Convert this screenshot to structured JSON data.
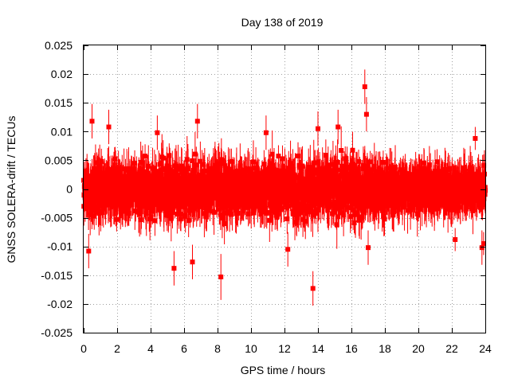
{
  "chart_data": {
    "type": "scatter",
    "title": "Day 138 of 2019",
    "xlabel": "GPS time / hours",
    "ylabel": "GNSS SOLERA-drift / TECUs",
    "xlim": [
      0,
      24
    ],
    "ylim": [
      -0.025,
      0.025
    ],
    "x_ticks": [
      0,
      2,
      4,
      6,
      8,
      10,
      12,
      14,
      16,
      18,
      20,
      22,
      24
    ],
    "y_ticks": [
      -0.025,
      -0.02,
      -0.015,
      -0.01,
      -0.005,
      0,
      0.005,
      0.01,
      0.015,
      0.02,
      0.025
    ],
    "y_tick_labels": [
      "-0.025",
      "-0.02",
      "-0.015",
      "-0.01",
      "-0.005",
      "0",
      "0.005",
      "0.01",
      "0.015",
      "0.02",
      "0.025"
    ],
    "grid": true,
    "series": [
      {
        "color": "#ff0000",
        "marker": "square",
        "error_bars": true,
        "sampling_interval_hours": 0.01,
        "typical_spread": 0.005,
        "typical_error": 0.003,
        "notable_points": [
          {
            "x": 16.8,
            "y": 0.0178,
            "err": 0.003
          },
          {
            "x": 16.9,
            "y": 0.013,
            "err": 0.003
          },
          {
            "x": 13.7,
            "y": -0.0173,
            "err": 0.003
          },
          {
            "x": 8.2,
            "y": -0.0153,
            "err": 0.004
          },
          {
            "x": 5.4,
            "y": -0.0138,
            "err": 0.003
          },
          {
            "x": 6.5,
            "y": -0.0127,
            "err": 0.003
          },
          {
            "x": 0.5,
            "y": 0.0118,
            "err": 0.003
          },
          {
            "x": 0.3,
            "y": -0.0108,
            "err": 0.003
          },
          {
            "x": 12.2,
            "y": -0.0105,
            "err": 0.003
          },
          {
            "x": 23.8,
            "y": -0.0102,
            "err": 0.003
          },
          {
            "x": 23.4,
            "y": 0.0088,
            "err": 0.002
          },
          {
            "x": 10.9,
            "y": 0.0098,
            "err": 0.003
          },
          {
            "x": 14.0,
            "y": 0.0105,
            "err": 0.003
          },
          {
            "x": 15.2,
            "y": 0.0108,
            "err": 0.003
          },
          {
            "x": 4.4,
            "y": 0.0098,
            "err": 0.003
          },
          {
            "x": 6.8,
            "y": 0.0118,
            "err": 0.003
          },
          {
            "x": 17.0,
            "y": -0.0102,
            "err": 0.003
          },
          {
            "x": 22.2,
            "y": -0.0088,
            "err": 0.002
          },
          {
            "x": 23.9,
            "y": -0.0095,
            "err": 0.002
          },
          {
            "x": 1.5,
            "y": 0.0108,
            "err": 0.003
          }
        ]
      }
    ]
  }
}
